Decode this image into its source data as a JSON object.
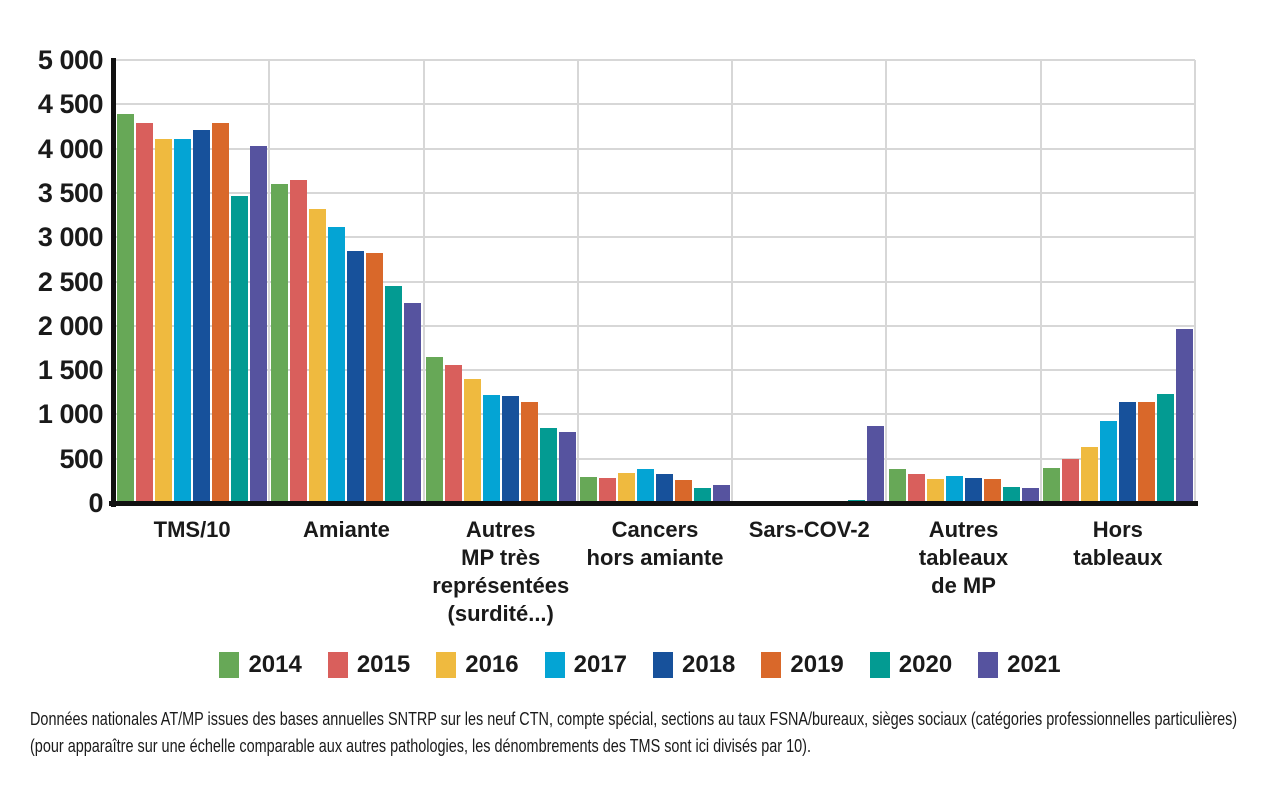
{
  "chart_data": {
    "type": "bar",
    "title": "",
    "xlabel": "",
    "ylabel": "",
    "ylim": [
      0,
      5000
    ],
    "ytick_step": 500,
    "ytick_labels": [
      "5 000",
      "4 500",
      "4 000",
      "3 500",
      "3 000",
      "2 500",
      "2 000",
      "1 500",
      "1 000",
      "500",
      "0"
    ],
    "grid": "horizontal gridlines every 500 plus vertical group separators, light gray",
    "legend_position": "bottom",
    "categories": [
      "TMS/10",
      "Amiante",
      "Autres\nMP très\nreprésentées\n(surdité...)",
      "Cancers\nhors amiante",
      "Sars-COV-2",
      "Autres\ntableaux\nde MP",
      "Hors\ntableaux"
    ],
    "series": [
      {
        "name": "2014",
        "color": "#67A857",
        "values": [
          4390,
          3600,
          1650,
          290,
          0,
          380,
          390
        ]
      },
      {
        "name": "2015",
        "color": "#D95F5C",
        "values": [
          4290,
          3650,
          1560,
          280,
          0,
          330,
          500
        ]
      },
      {
        "name": "2016",
        "color": "#EFBA3F",
        "values": [
          4110,
          3320,
          1400,
          340,
          0,
          270,
          630
        ]
      },
      {
        "name": "2017",
        "color": "#04A4D4",
        "values": [
          4110,
          3120,
          1220,
          380,
          0,
          300,
          930
        ]
      },
      {
        "name": "2018",
        "color": "#17519B",
        "values": [
          4210,
          2840,
          1210,
          330,
          0,
          280,
          1140
        ]
      },
      {
        "name": "2019",
        "color": "#D9682A",
        "values": [
          4290,
          2820,
          1140,
          260,
          0,
          270,
          1140
        ]
      },
      {
        "name": "2020",
        "color": "#039B92",
        "values": [
          3460,
          2450,
          850,
          170,
          30,
          180,
          1230
        ]
      },
      {
        "name": "2021",
        "color": "#56539F",
        "values": [
          4030,
          2260,
          800,
          200,
          870,
          175,
          1960
        ]
      }
    ]
  },
  "footer": {
    "line1": "Données nationales AT/MP issues des bases annuelles SNTRP sur les neuf CTN, compte spécial, sections au taux FSNA/bureaux, sièges sociaux (catégories professionnelles particulières)",
    "line2": "(pour apparaître sur une échelle comparable aux autres pathologies, les dénombrements des TMS sont ici divisés par 10)."
  }
}
